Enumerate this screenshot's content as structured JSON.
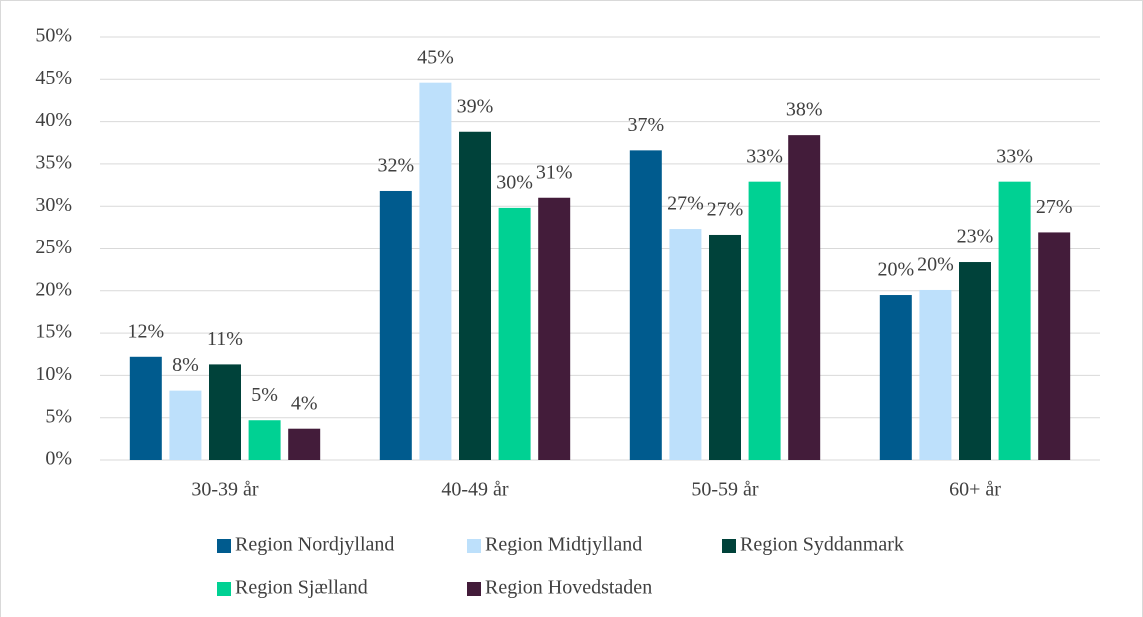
{
  "chart_data": {
    "type": "bar",
    "categories": [
      "30-39 år",
      "40-49 år",
      "50-59 år",
      "60+ år"
    ],
    "series": [
      {
        "name": "Region Nordjylland",
        "color": "#005b8e",
        "values": [
          12.2,
          31.8,
          36.6,
          19.5
        ],
        "value_labels": [
          "12%",
          "32%",
          "37%",
          "20%"
        ]
      },
      {
        "name": "Region Midtjylland",
        "color": "#bde0fb",
        "values": [
          8.2,
          44.6,
          27.3,
          20.1
        ],
        "value_labels": [
          "8%",
          "45%",
          "27%",
          "20%"
        ]
      },
      {
        "name": "Region Syddanmark",
        "color": "#00423a",
        "values": [
          11.3,
          38.8,
          26.6,
          23.4
        ],
        "value_labels": [
          "11%",
          "39%",
          "27%",
          "23%"
        ]
      },
      {
        "name": "Region Sjælland",
        "color": "#00d193",
        "values": [
          4.7,
          29.8,
          32.9,
          32.9
        ],
        "value_labels": [
          "5%",
          "30%",
          "33%",
          "33%"
        ]
      },
      {
        "name": "Region Hovedstaden",
        "color": "#431c3a",
        "values": [
          3.7,
          31.0,
          38.4,
          26.9
        ],
        "value_labels": [
          "4%",
          "31%",
          "38%",
          "27%"
        ]
      }
    ],
    "ylim": [
      0,
      50
    ],
    "yticks": [
      {
        "value": 0,
        "label": "0%"
      },
      {
        "value": 5,
        "label": "5%"
      },
      {
        "value": 10,
        "label": "10%"
      },
      {
        "value": 15,
        "label": "15%"
      },
      {
        "value": 20,
        "label": "20%"
      },
      {
        "value": 25,
        "label": "25%"
      },
      {
        "value": 30,
        "label": "30%"
      },
      {
        "value": 35,
        "label": "35%"
      },
      {
        "value": 40,
        "label": "40%"
      },
      {
        "value": 45,
        "label": "45%"
      },
      {
        "value": 50,
        "label": "50%"
      }
    ],
    "grid": true
  }
}
